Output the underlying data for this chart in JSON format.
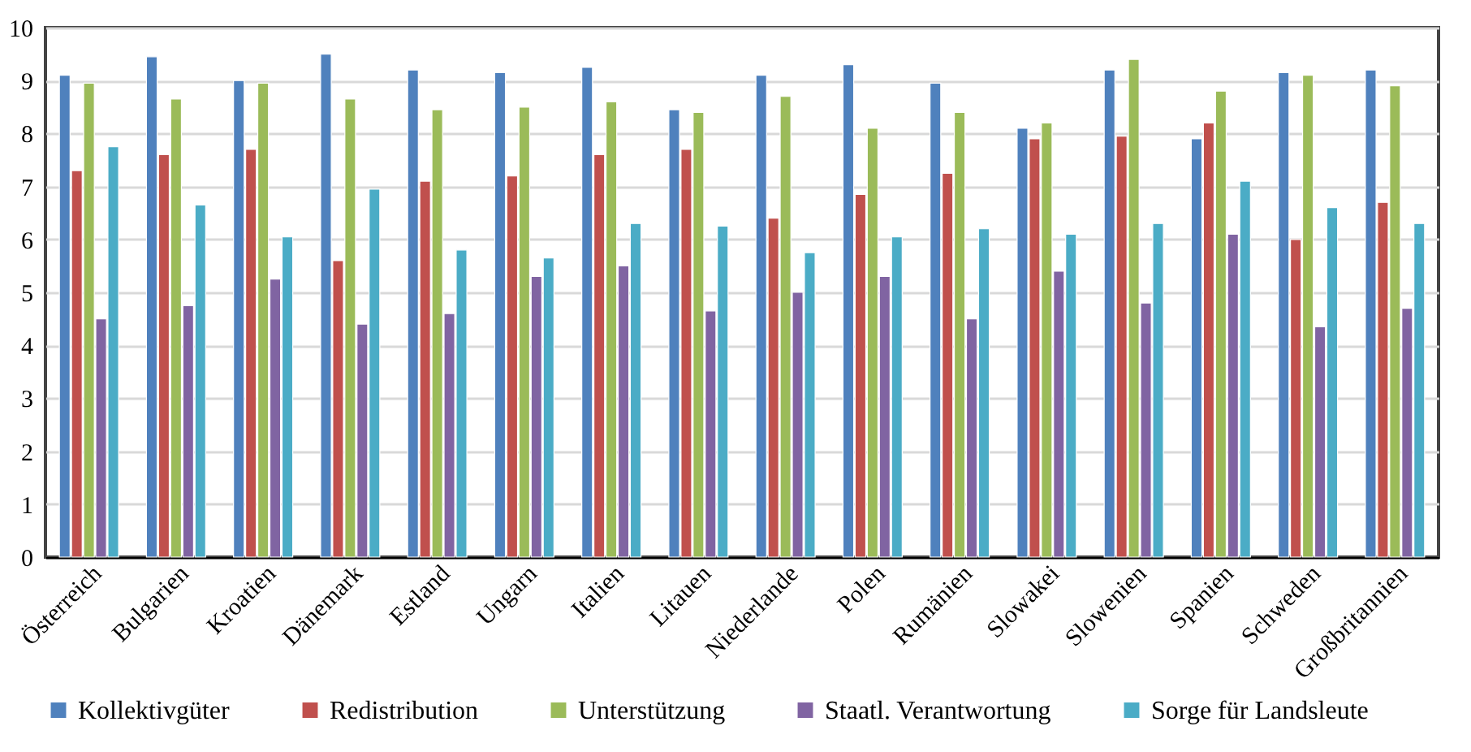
{
  "chart_data": {
    "type": "bar",
    "categories": [
      "Österreich",
      "Bulgarien",
      "Kroatien",
      "Dänemark",
      "Estland",
      "Ungarn",
      "Italien",
      "Litauen",
      "Niederlande",
      "Polen",
      "Rumänien",
      "Slowakei",
      "Slowenien",
      "Spanien",
      "Schweden",
      "Großbritannien"
    ],
    "series": [
      {
        "name": "Kollektivgüter",
        "color": "#4f81bd",
        "values": [
          9.1,
          9.45,
          9.0,
          9.5,
          9.2,
          9.15,
          9.25,
          8.45,
          9.1,
          9.3,
          8.95,
          8.1,
          9.2,
          7.9,
          9.15,
          9.2
        ]
      },
      {
        "name": "Redistribution",
        "color": "#c0504d",
        "values": [
          7.3,
          7.6,
          7.7,
          5.6,
          7.1,
          7.2,
          7.6,
          7.7,
          6.4,
          6.85,
          7.25,
          7.9,
          7.95,
          8.2,
          6.0,
          6.7
        ]
      },
      {
        "name": "Unterstützung",
        "color": "#9bbb59",
        "values": [
          8.95,
          8.65,
          8.95,
          8.65,
          8.45,
          8.5,
          8.6,
          8.4,
          8.7,
          8.1,
          8.4,
          8.2,
          9.4,
          8.8,
          9.1,
          8.9
        ]
      },
      {
        "name": "Staatl. Verantwortung",
        "color": "#8064a2",
        "values": [
          4.5,
          4.75,
          5.25,
          4.4,
          4.6,
          5.3,
          5.5,
          4.65,
          5.0,
          5.3,
          4.5,
          5.4,
          4.8,
          6.1,
          4.35,
          4.7
        ]
      },
      {
        "name": "Sorge für Landsleute",
        "color": "#4bacc6",
        "values": [
          7.75,
          6.65,
          6.05,
          6.95,
          5.8,
          5.65,
          6.3,
          6.25,
          5.75,
          6.05,
          6.2,
          6.1,
          6.3,
          7.1,
          6.6,
          6.3
        ]
      }
    ],
    "ylim": [
      0,
      10
    ],
    "yticks": [
      0,
      1,
      2,
      3,
      4,
      5,
      6,
      7,
      8,
      9,
      10
    ],
    "grid": "y",
    "legend": "bottom"
  }
}
